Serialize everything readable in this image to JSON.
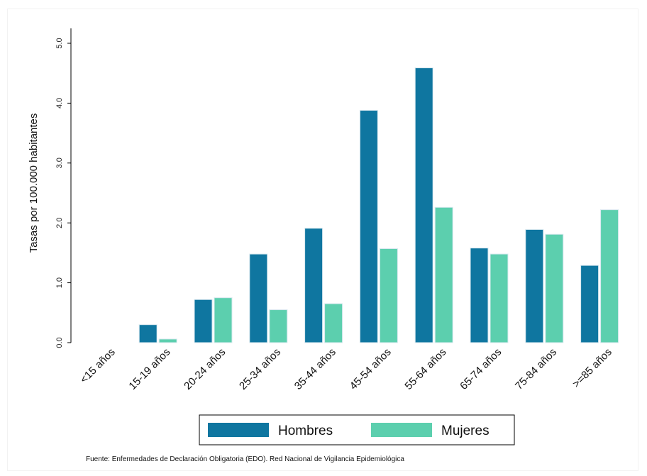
{
  "chart_data": {
    "type": "bar",
    "categories": [
      "<15 años",
      "15-19 años",
      "20-24 años",
      "25-34 años",
      "35-44 años",
      "45-54 años",
      "55-64 años",
      "65-74 años",
      "75-84 años",
      ">=85 años"
    ],
    "series": [
      {
        "name": "Hombres",
        "color": "#0f76a0",
        "values": [
          0.0,
          0.3,
          0.72,
          1.48,
          1.91,
          3.88,
          4.59,
          1.58,
          1.89,
          1.29
        ]
      },
      {
        "name": "Mujeres",
        "color": "#5ccfae",
        "values": [
          0.0,
          0.06,
          0.75,
          0.55,
          0.65,
          1.57,
          2.26,
          1.48,
          1.81,
          2.22
        ]
      }
    ],
    "ylabel": "Tasas por 100.000 habitantes",
    "xlabel": "",
    "ylim": [
      0,
      5
    ],
    "yticks": [
      "0.0",
      "1.0",
      "2.0",
      "3.0",
      "4.0",
      "5.0"
    ],
    "grid": false,
    "legend_position": "bottom"
  },
  "footer": {
    "source": "Fuente: Enfermedades de Declaración Obligatoria (EDO). Red Nacional de Vigilancia Epidemiológica"
  }
}
